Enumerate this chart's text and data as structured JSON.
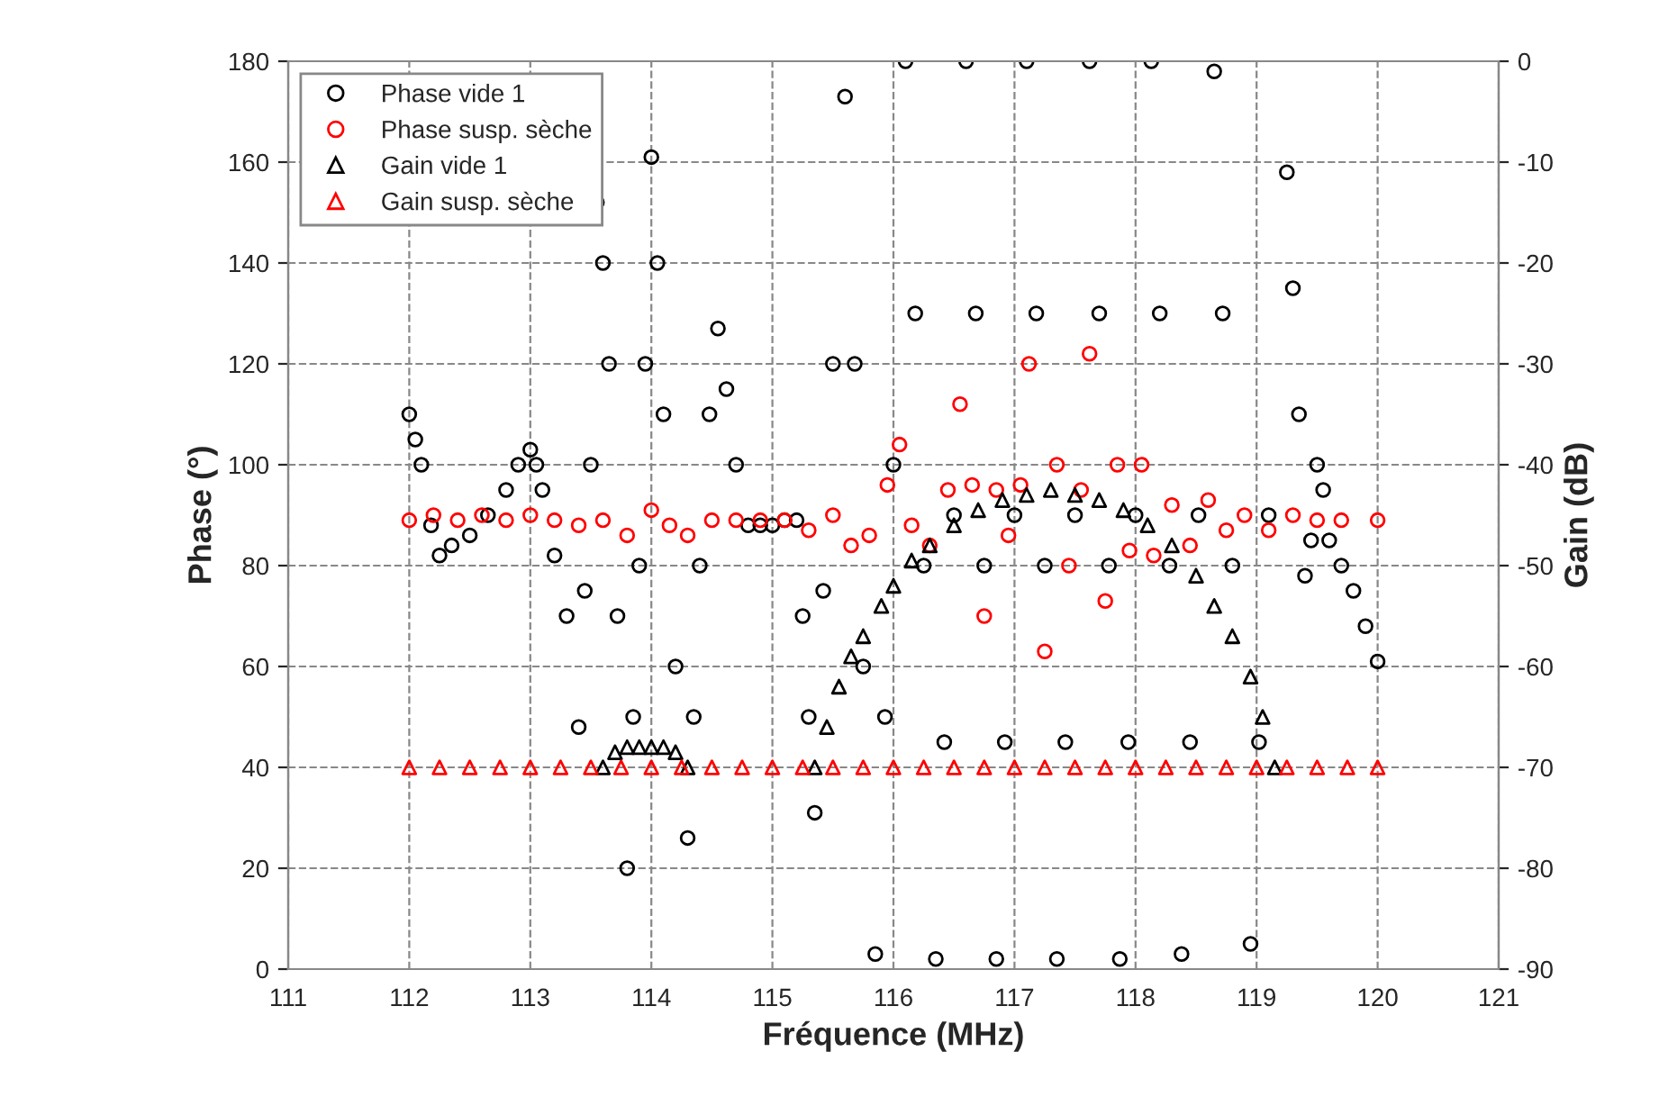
{
  "chart_data": {
    "type": "scatter",
    "xlabel": "Fréquence (MHz)",
    "ylabel": "Phase (°)",
    "y2label": "Gain (dB)",
    "xlim": [
      111,
      121
    ],
    "xticks": [
      111,
      112,
      113,
      114,
      115,
      116,
      117,
      118,
      119,
      120,
      121
    ],
    "ylim": [
      0,
      180
    ],
    "yticks": [
      0,
      20,
      40,
      60,
      80,
      100,
      120,
      140,
      160,
      180
    ],
    "y2lim": [
      -90,
      0
    ],
    "y2ticks": [
      -90,
      -80,
      -70,
      -60,
      -50,
      -40,
      -30,
      -20,
      -10,
      0
    ],
    "grid": true,
    "legend": "top left",
    "series": [
      {
        "name": "Phase vide 1",
        "color": "#000000",
        "marker": "circle",
        "x": [
          112.0,
          112.05,
          112.1,
          112.18,
          112.25,
          112.35,
          112.5,
          112.65,
          112.8,
          112.9,
          113.0,
          113.05,
          113.1,
          113.2,
          113.3,
          113.4,
          113.45,
          113.5,
          113.55,
          113.6,
          113.65,
          113.72,
          113.8,
          113.85,
          113.9,
          113.95,
          114.0,
          114.05,
          114.1,
          114.2,
          114.3,
          114.35,
          114.4,
          114.48,
          114.55,
          114.62,
          114.7,
          114.8,
          114.9,
          115.0,
          115.1,
          115.2,
          115.25,
          115.3,
          115.35,
          115.42,
          115.5,
          115.6,
          115.68,
          115.75,
          115.85,
          115.93,
          116.0,
          116.1,
          116.18,
          116.25,
          116.35,
          116.42,
          116.5,
          116.6,
          116.68,
          116.75,
          116.85,
          116.92,
          117.0,
          117.1,
          117.18,
          117.25,
          117.35,
          117.42,
          117.5,
          117.62,
          117.7,
          117.78,
          117.87,
          117.94,
          118.0,
          118.13,
          118.2,
          118.28,
          118.38,
          118.45,
          118.52,
          118.65,
          118.72,
          118.8,
          118.95,
          119.02,
          119.1,
          119.25,
          119.3,
          119.35,
          119.4,
          119.45,
          119.5,
          119.55,
          119.6,
          119.7,
          119.8,
          119.9,
          120.0
        ],
        "values": [
          110,
          105,
          100,
          88,
          82,
          84,
          86,
          90,
          95,
          100,
          103,
          100,
          95,
          82,
          70,
          48,
          75,
          100,
          152,
          140,
          120,
          70,
          20,
          50,
          80,
          120,
          161,
          140,
          110,
          60,
          26,
          50,
          80,
          110,
          127,
          115,
          100,
          88,
          88,
          88,
          89,
          89,
          70,
          50,
          31,
          75,
          120,
          173,
          120,
          60,
          3,
          50,
          100,
          180,
          130,
          80,
          2,
          45,
          90,
          180,
          130,
          80,
          2,
          45,
          90,
          180,
          130,
          80,
          2,
          45,
          90,
          180,
          130,
          80,
          2,
          45,
          90,
          180,
          130,
          80,
          3,
          45,
          90,
          178,
          130,
          80,
          5,
          45,
          90,
          158,
          135,
          110,
          78,
          85,
          100,
          95,
          85,
          80,
          75,
          68,
          61
        ]
      },
      {
        "name": "Phase susp. sèche",
        "color": "#ff0000",
        "marker": "circle",
        "x": [
          112.0,
          112.2,
          112.4,
          112.6,
          112.8,
          113.0,
          113.2,
          113.4,
          113.6,
          113.8,
          114.0,
          114.15,
          114.3,
          114.5,
          114.7,
          114.9,
          115.1,
          115.3,
          115.5,
          115.65,
          115.8,
          115.95,
          116.05,
          116.15,
          116.3,
          116.45,
          116.55,
          116.65,
          116.75,
          116.85,
          116.95,
          117.05,
          117.12,
          117.25,
          117.35,
          117.45,
          117.55,
          117.62,
          117.75,
          117.85,
          117.95,
          118.05,
          118.15,
          118.3,
          118.45,
          118.6,
          118.75,
          118.9,
          119.1,
          119.3,
          119.5,
          119.7,
          120.0
        ],
        "values": [
          89,
          90,
          89,
          90,
          89,
          90,
          89,
          88,
          89,
          86,
          91,
          88,
          86,
          89,
          89,
          89,
          89,
          87,
          90,
          84,
          86,
          96,
          104,
          88,
          84,
          95,
          112,
          96,
          70,
          95,
          86,
          96,
          120,
          63,
          100,
          80,
          95,
          122,
          73,
          100,
          83,
          100,
          82,
          92,
          84,
          93,
          87,
          90,
          87,
          90,
          89,
          89,
          89
        ]
      },
      {
        "name": "Gain vide 1",
        "color": "#000000",
        "marker": "triangle",
        "axis": "y2",
        "x": [
          113.6,
          113.7,
          113.8,
          113.9,
          114.0,
          114.1,
          114.2,
          114.3,
          115.35,
          115.45,
          115.55,
          115.65,
          115.75,
          115.9,
          116.0,
          116.15,
          116.3,
          116.5,
          116.7,
          116.9,
          117.1,
          117.3,
          117.5,
          117.7,
          117.9,
          118.1,
          118.3,
          118.5,
          118.65,
          118.8,
          118.95,
          119.05,
          119.15
        ],
        "values": [
          -70,
          -68.5,
          -68,
          -68,
          -68,
          -68,
          -68.5,
          -70,
          -70,
          -66,
          -62,
          -59,
          -57,
          -54,
          -52,
          -49.5,
          -48,
          -46,
          -44.5,
          -43.5,
          -43,
          -42.5,
          -43,
          -43.5,
          -44.5,
          -46,
          -48,
          -51,
          -54,
          -57,
          -61,
          -65,
          -70
        ]
      },
      {
        "name": "Gain susp. sèche",
        "color": "#ff0000",
        "marker": "triangle",
        "axis": "y2",
        "x": [
          112.0,
          112.25,
          112.5,
          112.75,
          113.0,
          113.25,
          113.5,
          113.75,
          114.0,
          114.25,
          114.5,
          114.75,
          115.0,
          115.25,
          115.5,
          115.75,
          116.0,
          116.25,
          116.5,
          116.75,
          117.0,
          117.25,
          117.5,
          117.75,
          118.0,
          118.25,
          118.5,
          118.75,
          119.0,
          119.25,
          119.5,
          119.75,
          120.0
        ],
        "values": [
          -70,
          -70,
          -70,
          -70,
          -70,
          -70,
          -70,
          -70,
          -70,
          -70,
          -70,
          -70,
          -70,
          -70,
          -70,
          -70,
          -70,
          -70,
          -70,
          -70,
          -70,
          -70,
          -70,
          -70,
          -70,
          -70,
          -70,
          -70,
          -70,
          -70,
          -70,
          -70,
          -70
        ]
      }
    ]
  }
}
